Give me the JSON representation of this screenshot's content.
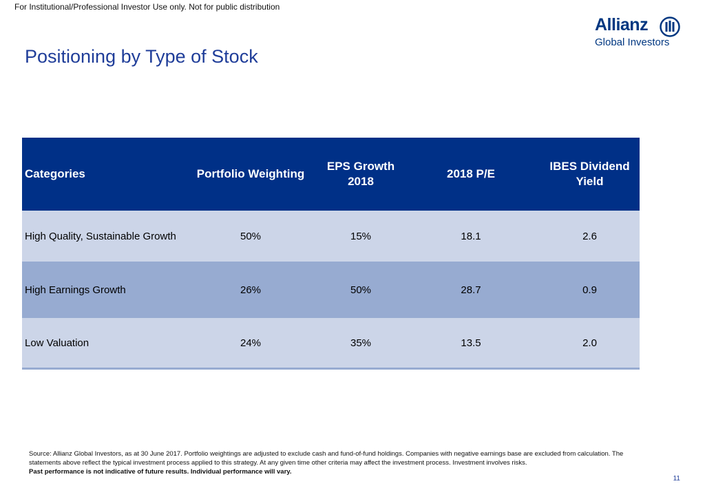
{
  "header": {
    "disclaimer": "For Institutional/Professional Investor Use only. Not for public distribution",
    "title": "Positioning by Type of Stock"
  },
  "logo": {
    "brand": "Allianz",
    "sub": "Global Investors",
    "icon": "allianz-eagle-mark-icon",
    "color": "#003781"
  },
  "table": {
    "headers": [
      "Categories",
      "Portfolio Weighting",
      "EPS Growth 2018",
      "2018 P/E",
      "IBES Dividend Yield"
    ],
    "rows": [
      [
        "High Quality, Sustainable Growth",
        "50%",
        "15%",
        "18.1",
        "2.6"
      ],
      [
        "High Earnings Growth",
        "26%",
        "50%",
        "28.7",
        "0.9"
      ],
      [
        "Low Valuation",
        "24%",
        "35%",
        "13.5",
        "2.0"
      ]
    ],
    "colors": {
      "header_bg": "#003087",
      "row_light": "#ccd5e8",
      "row_dark": "#97abd1"
    }
  },
  "footer": {
    "source": "Source: Allianz Global Investors, as at 30 June 2017. Portfolio weightings are adjusted to exclude cash and fund-of-fund holdings. Companies with negative earnings base are excluded from calculation. The statements above reflect the typical investment process applied to this strategy. At any given time other criteria may affect the investment process. Investment involves risks.",
    "source_bold": "Past performance is not indicative of future results. Individual performance will vary.",
    "page_number": "11"
  }
}
